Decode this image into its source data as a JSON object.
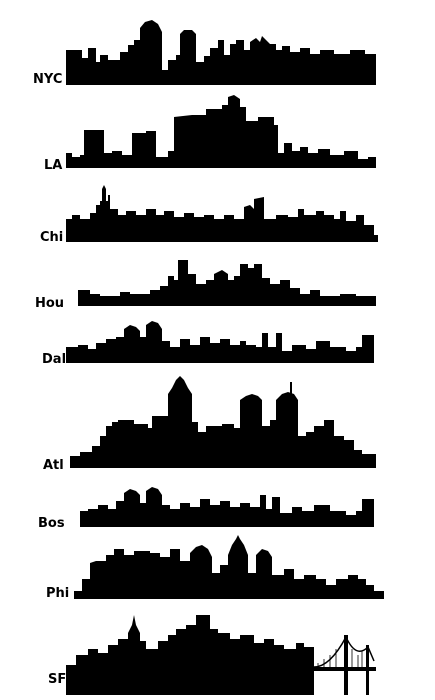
{
  "cities": [
    {
      "label": "NYC"
    },
    {
      "label": "LA"
    },
    {
      "label": "Chi"
    },
    {
      "label": "Hou"
    },
    {
      "label": "Dal"
    },
    {
      "label": "Atl"
    },
    {
      "label": "Bos"
    },
    {
      "label": "Phi"
    },
    {
      "label": "SF"
    }
  ],
  "colors": {
    "silhouette": "#000000",
    "background": "#ffffff"
  }
}
